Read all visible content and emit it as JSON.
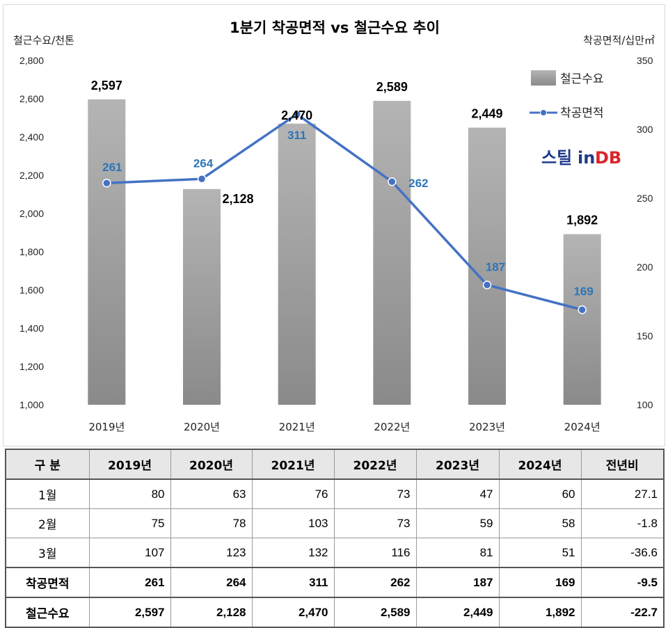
{
  "chart_data": {
    "type": "bar+line",
    "title": "1분기 착공면적 vs 철근수요 추이",
    "categories": [
      "2019년",
      "2020년",
      "2021년",
      "2022년",
      "2023년",
      "2024년"
    ],
    "series": [
      {
        "name": "철근수요",
        "type": "bar",
        "axis": "left",
        "color": "#a6a6a6",
        "values": [
          2597,
          2128,
          2470,
          2589,
          2449,
          1892
        ]
      },
      {
        "name": "착공면적",
        "type": "line",
        "axis": "right",
        "color": "#4472c4",
        "values": [
          261,
          264,
          311,
          262,
          187,
          169
        ]
      }
    ],
    "bar_labels": [
      "2,597",
      "2,128",
      "2,470",
      "2,589",
      "2,449",
      "1,892"
    ],
    "line_labels": [
      "261",
      "264",
      "311",
      "262",
      "187",
      "169"
    ],
    "ylabel_left": "철근수요/천톤",
    "ylabel_right": "착공면적/십만㎡",
    "ylim_left": [
      1000,
      2800
    ],
    "ylim_right": [
      100,
      350
    ],
    "yticks_left": [
      "1,000",
      "1,200",
      "1,400",
      "1,600",
      "1,800",
      "2,000",
      "2,200",
      "2,400",
      "2,600",
      "2,800"
    ],
    "yticks_right": [
      "100",
      "150",
      "200",
      "250",
      "300",
      "350"
    ],
    "legend_position": "top-right",
    "grid": false,
    "logo": "스틸in DB"
  },
  "table": {
    "headers": [
      "구  분",
      "2019년",
      "2020년",
      "2021년",
      "2022년",
      "2023년",
      "2024년",
      "전년비"
    ],
    "rows": [
      {
        "label": "1월",
        "values": [
          "80",
          "63",
          "76",
          "73",
          "47",
          "60",
          "27.1"
        ]
      },
      {
        "label": "2월",
        "values": [
          "75",
          "78",
          "103",
          "73",
          "59",
          "58",
          "-1.8"
        ]
      },
      {
        "label": "3월",
        "values": [
          "107",
          "123",
          "132",
          "116",
          "81",
          "51",
          "-36.6"
        ]
      },
      {
        "label": "착공면적",
        "values": [
          "261",
          "264",
          "311",
          "262",
          "187",
          "169",
          "-9.5"
        ]
      },
      {
        "label": "철근수요",
        "values": [
          "2,597",
          "2,128",
          "2,470",
          "2,589",
          "2,449",
          "1,892",
          "-22.7"
        ]
      }
    ]
  }
}
